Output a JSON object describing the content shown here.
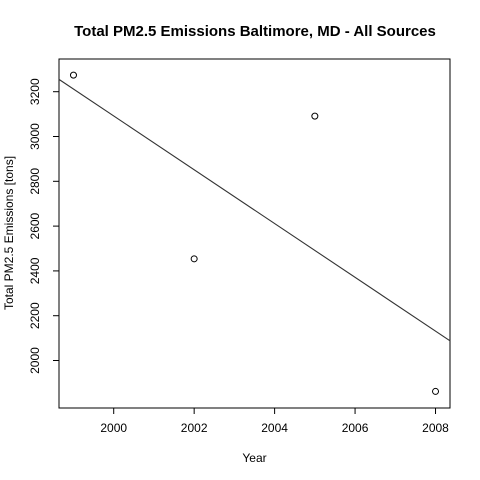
{
  "chart_data": {
    "type": "scatter",
    "title": "Total PM2.5 Emissions Baltimore, MD - All Sources",
    "xlabel": "Year",
    "ylabel": "Total PM2.5 Emissions [tons]",
    "xlim": [
      1998.64,
      2008.36
    ],
    "ylim": [
      1788,
      3346
    ],
    "x_ticks": [
      2000,
      2002,
      2004,
      2006,
      2008
    ],
    "y_ticks": [
      2000,
      2200,
      2400,
      2600,
      2800,
      3000,
      3200
    ],
    "grid": false,
    "legend": "none",
    "series": [
      {
        "points": [
          {
            "x": 1999,
            "y": 3274
          },
          {
            "x": 2002,
            "y": 2454
          },
          {
            "x": 2005,
            "y": 3091
          },
          {
            "x": 2008,
            "y": 1862
          }
        ]
      }
    ],
    "trend_line": {
      "type": "linear-regression",
      "points": [
        {
          "x": 1998.64,
          "y": 3255
        },
        {
          "x": 2008.36,
          "y": 2088
        }
      ]
    }
  }
}
